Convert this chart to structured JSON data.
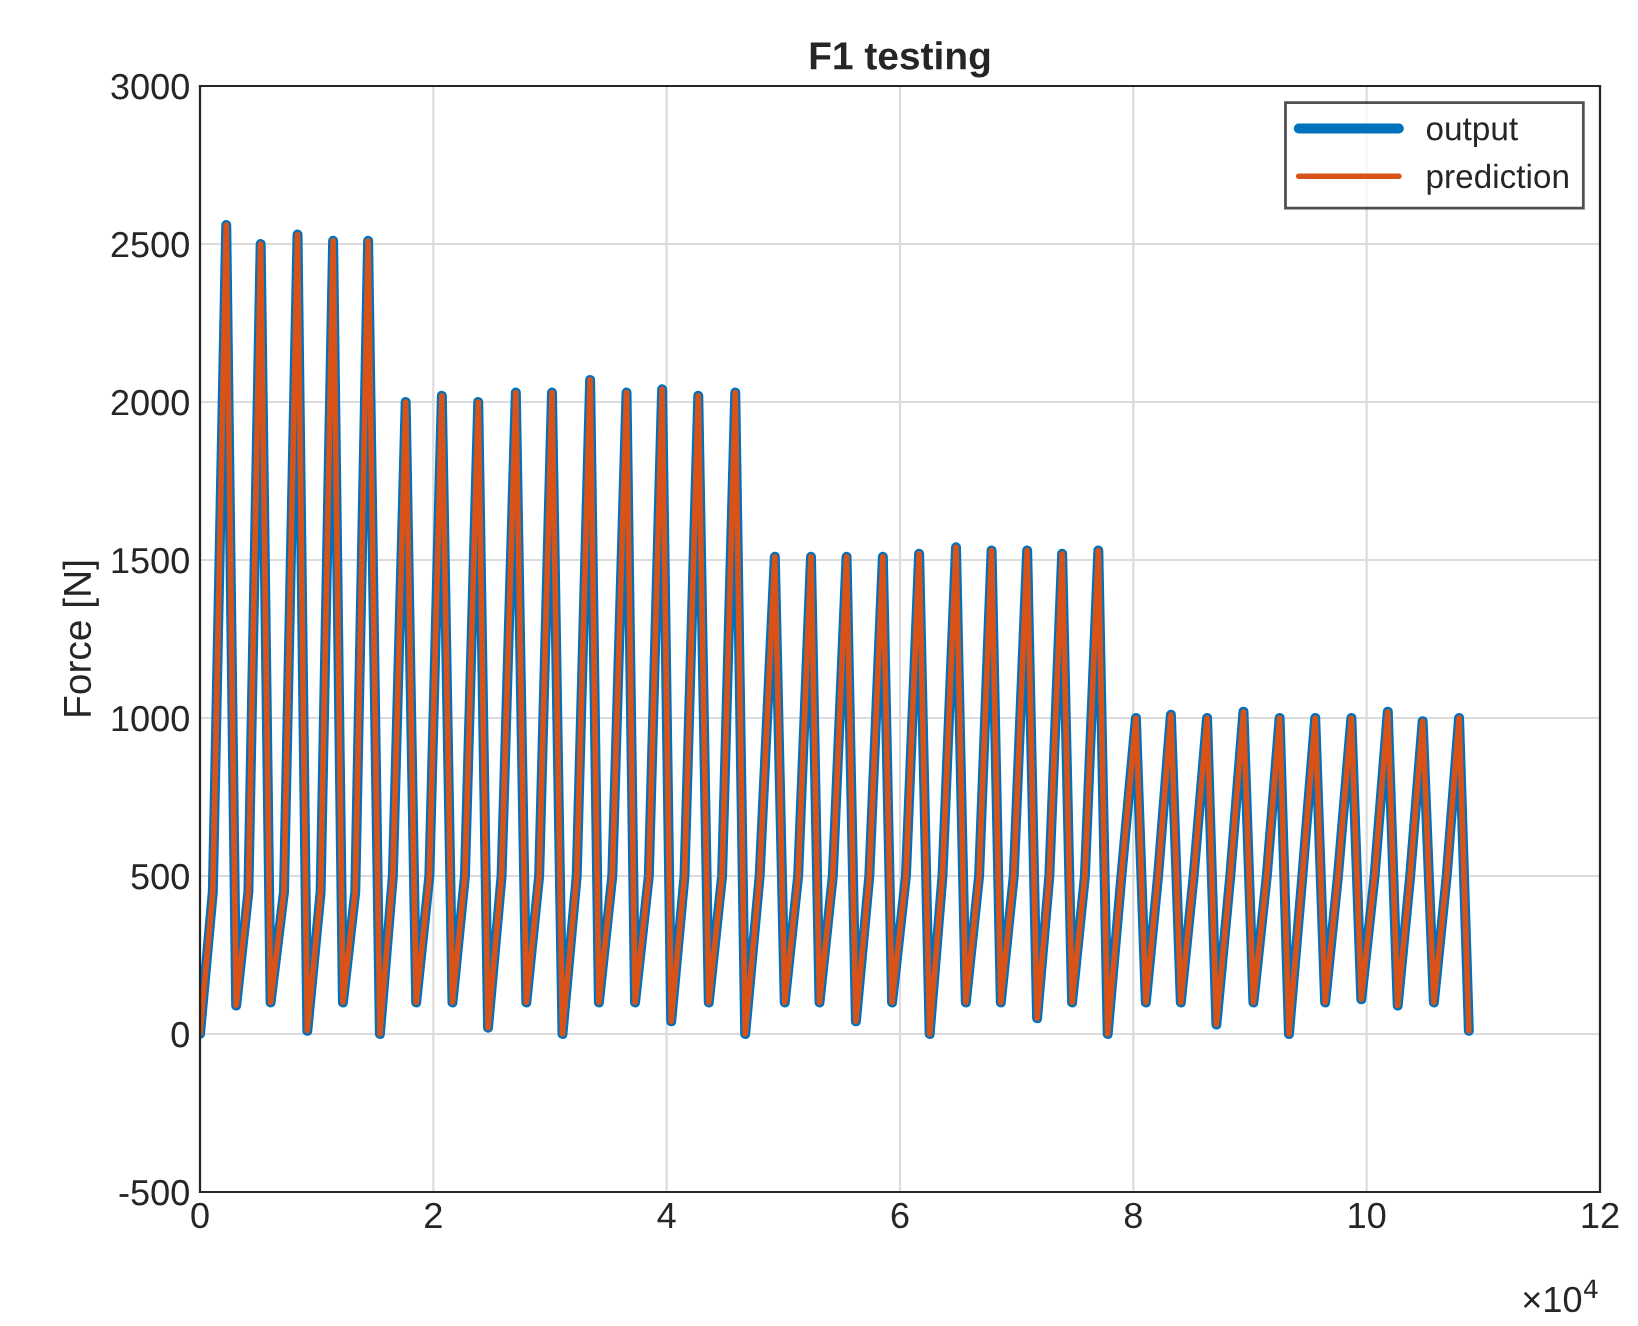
{
  "chart_data": {
    "type": "line",
    "title": "F1 testing",
    "ylabel": "Force [N]",
    "annotations": [
      "×10$^{4}$"
    ],
    "x": [
      0,
      0.11,
      0.225,
      0.31,
      0.415,
      0.52,
      0.605,
      0.72,
      0.836,
      0.92,
      1.034,
      1.141,
      1.225,
      1.331,
      1.441,
      1.542,
      1.653,
      1.763,
      1.853,
      1.966,
      2.073,
      2.164,
      2.271,
      2.385,
      2.469,
      2.585,
      2.707,
      2.797,
      2.907,
      3.017,
      3.107,
      3.229,
      3.344,
      3.419,
      3.534,
      3.656,
      3.729,
      3.847,
      3.961,
      4.039,
      4.153,
      4.271,
      4.361,
      4.475,
      4.588,
      4.673,
      4.797,
      4.927,
      5.012,
      5.127,
      5.237,
      5.31,
      5.424,
      5.542,
      5.622,
      5.737,
      5.853,
      5.932,
      6.051,
      6.164,
      6.254,
      6.364,
      6.48,
      6.564,
      6.678,
      6.785,
      6.864,
      6.975,
      7.09,
      7.175,
      7.28,
      7.39,
      7.475,
      7.585,
      7.7,
      7.78,
      7.898,
      8.022,
      8.107,
      8.212,
      8.322,
      8.407,
      8.517,
      8.632,
      8.712,
      8.831,
      8.944,
      9.029,
      9.144,
      9.254,
      9.334,
      9.449,
      9.559,
      9.644,
      9.754,
      9.869,
      9.954,
      10.068,
      10.181,
      10.266,
      10.373,
      10.48,
      10.576,
      10.686,
      10.792,
      10.876
    ],
    "series": [
      {
        "name": "output",
        "color": "#0072bd",
        "values": [
          0,
          450,
          2560,
          90,
          450,
          2500,
          100,
          450,
          2530,
          10,
          450,
          2510,
          100,
          450,
          2510,
          0,
          500,
          2000,
          100,
          500,
          2020,
          100,
          500,
          2000,
          20,
          500,
          2030,
          100,
          500,
          2030,
          0,
          500,
          2070,
          100,
          500,
          2030,
          100,
          500,
          2040,
          40,
          500,
          2020,
          100,
          500,
          2030,
          0,
          500,
          1510,
          100,
          500,
          1510,
          100,
          500,
          1510,
          40,
          500,
          1510,
          100,
          500,
          1520,
          0,
          500,
          1540,
          100,
          500,
          1530,
          100,
          500,
          1530,
          50,
          500,
          1520,
          100,
          500,
          1530,
          0,
          500,
          1000,
          100,
          500,
          1010,
          100,
          500,
          1000,
          30,
          500,
          1020,
          100,
          500,
          1000,
          0,
          500,
          1000,
          100,
          500,
          1000,
          110,
          500,
          1020,
          90,
          500,
          990,
          100,
          500,
          1000,
          10
        ]
      },
      {
        "name": "prediction",
        "color": "#d95319",
        "values": [
          0,
          450,
          2560,
          90,
          450,
          2500,
          100,
          450,
          2530,
          10,
          450,
          2510,
          100,
          450,
          2510,
          0,
          500,
          2000,
          100,
          500,
          2020,
          100,
          500,
          2000,
          20,
          500,
          2030,
          100,
          500,
          2030,
          0,
          500,
          2070,
          100,
          500,
          2030,
          100,
          500,
          2040,
          40,
          500,
          2020,
          100,
          500,
          2030,
          0,
          500,
          1510,
          100,
          500,
          1510,
          100,
          500,
          1510,
          40,
          500,
          1510,
          100,
          500,
          1520,
          0,
          500,
          1540,
          100,
          500,
          1530,
          100,
          500,
          1530,
          50,
          500,
          1520,
          100,
          500,
          1530,
          0,
          500,
          1000,
          100,
          500,
          1010,
          100,
          500,
          1000,
          30,
          500,
          1020,
          100,
          500,
          1000,
          0,
          500,
          1000,
          100,
          500,
          1000,
          110,
          500,
          1020,
          90,
          500,
          990,
          100,
          500,
          1000,
          10
        ]
      }
    ],
    "xlim": [
      0,
      12
    ],
    "xticks": [
      0,
      2,
      4,
      6,
      8,
      10,
      12
    ],
    "ylim": [
      -500,
      3000
    ],
    "yticks": [
      -500,
      0,
      500,
      1000,
      1500,
      2000,
      2500,
      3000
    ],
    "grid": true,
    "legend": "top right",
    "marker": "none",
    "line_style": "solid"
  }
}
